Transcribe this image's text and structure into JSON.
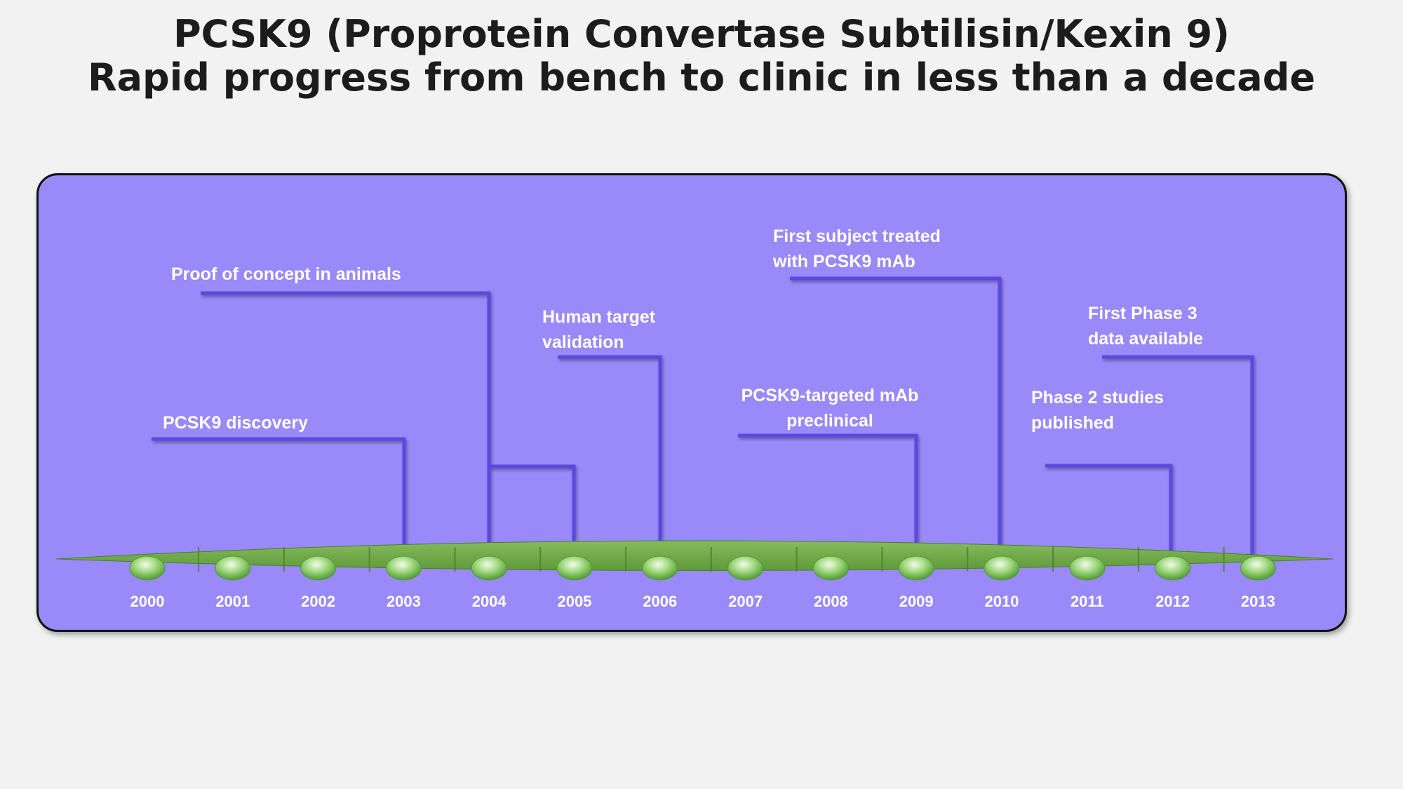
{
  "title": {
    "line1": "PCSK9 (Proprotein Convertase Subtilisin/Kexin 9)",
    "line2": "Rapid progress from bench to clinic in less than a decade"
  },
  "timeline": {
    "years": [
      "2000",
      "2001",
      "2002",
      "2003",
      "2004",
      "2005",
      "2006",
      "2007",
      "2008",
      "2009",
      "2010",
      "2011",
      "2012",
      "2013"
    ],
    "milestones": [
      {
        "text": "PCSK9 discovery",
        "year": "2003"
      },
      {
        "text": "Proof of concept in animals",
        "year": "2004"
      },
      {
        "text": "Human target validation",
        "line1": "Human target",
        "line2": "validation",
        "year": "2006"
      },
      {
        "text": "PCSK9-targeted mAb preclinical",
        "line1": "PCSK9-targeted mAb",
        "line2": "preclinical",
        "year": "2009"
      },
      {
        "text": "First subject treated with PCSK9 mAb",
        "line1": "First subject treated",
        "line2": "with PCSK9 mAb",
        "year": "2010"
      },
      {
        "text": "Phase 2 studies published",
        "line1": "Phase 2 studies",
        "line2": "published",
        "year": "2012"
      },
      {
        "text": "First Phase 3 data available",
        "line1": "First Phase 3",
        "line2": "data available",
        "year": "2013"
      }
    ]
  },
  "colors": {
    "panel": "#9a89f8",
    "connector": "#5a49e0",
    "bar": "#72a84a",
    "bead": "#7ec95a",
    "label": "#ffffff",
    "title": "#1c1c1c"
  }
}
